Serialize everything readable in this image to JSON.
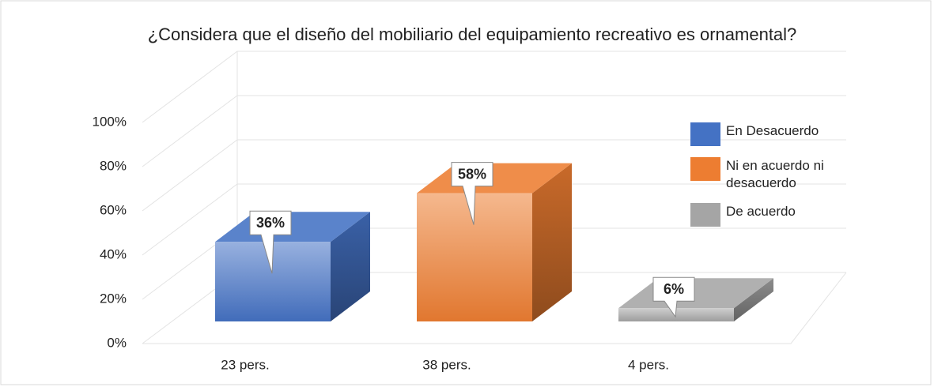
{
  "chart_data": {
    "type": "bar3d",
    "title": "¿Considera que el diseño del mobiliario del equipamiento recreativo es ornamental?",
    "categories": [
      "23 pers.",
      "38 pers.",
      "4 pers."
    ],
    "series": [
      {
        "name": "En Desacuerdo",
        "color": "#4472c4",
        "values": [
          36,
          null,
          null
        ],
        "value_labels": [
          "36%",
          null,
          null
        ]
      },
      {
        "name": "Ni en acuerdo ni desacuerdo",
        "color": "#ed7d31",
        "values": [
          null,
          58,
          null
        ],
        "value_labels": [
          null,
          "58%",
          null
        ]
      },
      {
        "name": "De acuerdo",
        "color": "#a5a5a5",
        "values": [
          null,
          null,
          6
        ],
        "value_labels": [
          null,
          null,
          "6%"
        ]
      }
    ],
    "ylim": [
      0,
      100
    ],
    "yticks": [
      {
        "value": 0,
        "label": "0%"
      },
      {
        "value": 20,
        "label": "20%"
      },
      {
        "value": 40,
        "label": "40%"
      },
      {
        "value": 60,
        "label": "60%"
      },
      {
        "value": 80,
        "label": "80%"
      },
      {
        "value": 100,
        "label": "100%"
      }
    ],
    "grid": true,
    "legend": "right"
  }
}
